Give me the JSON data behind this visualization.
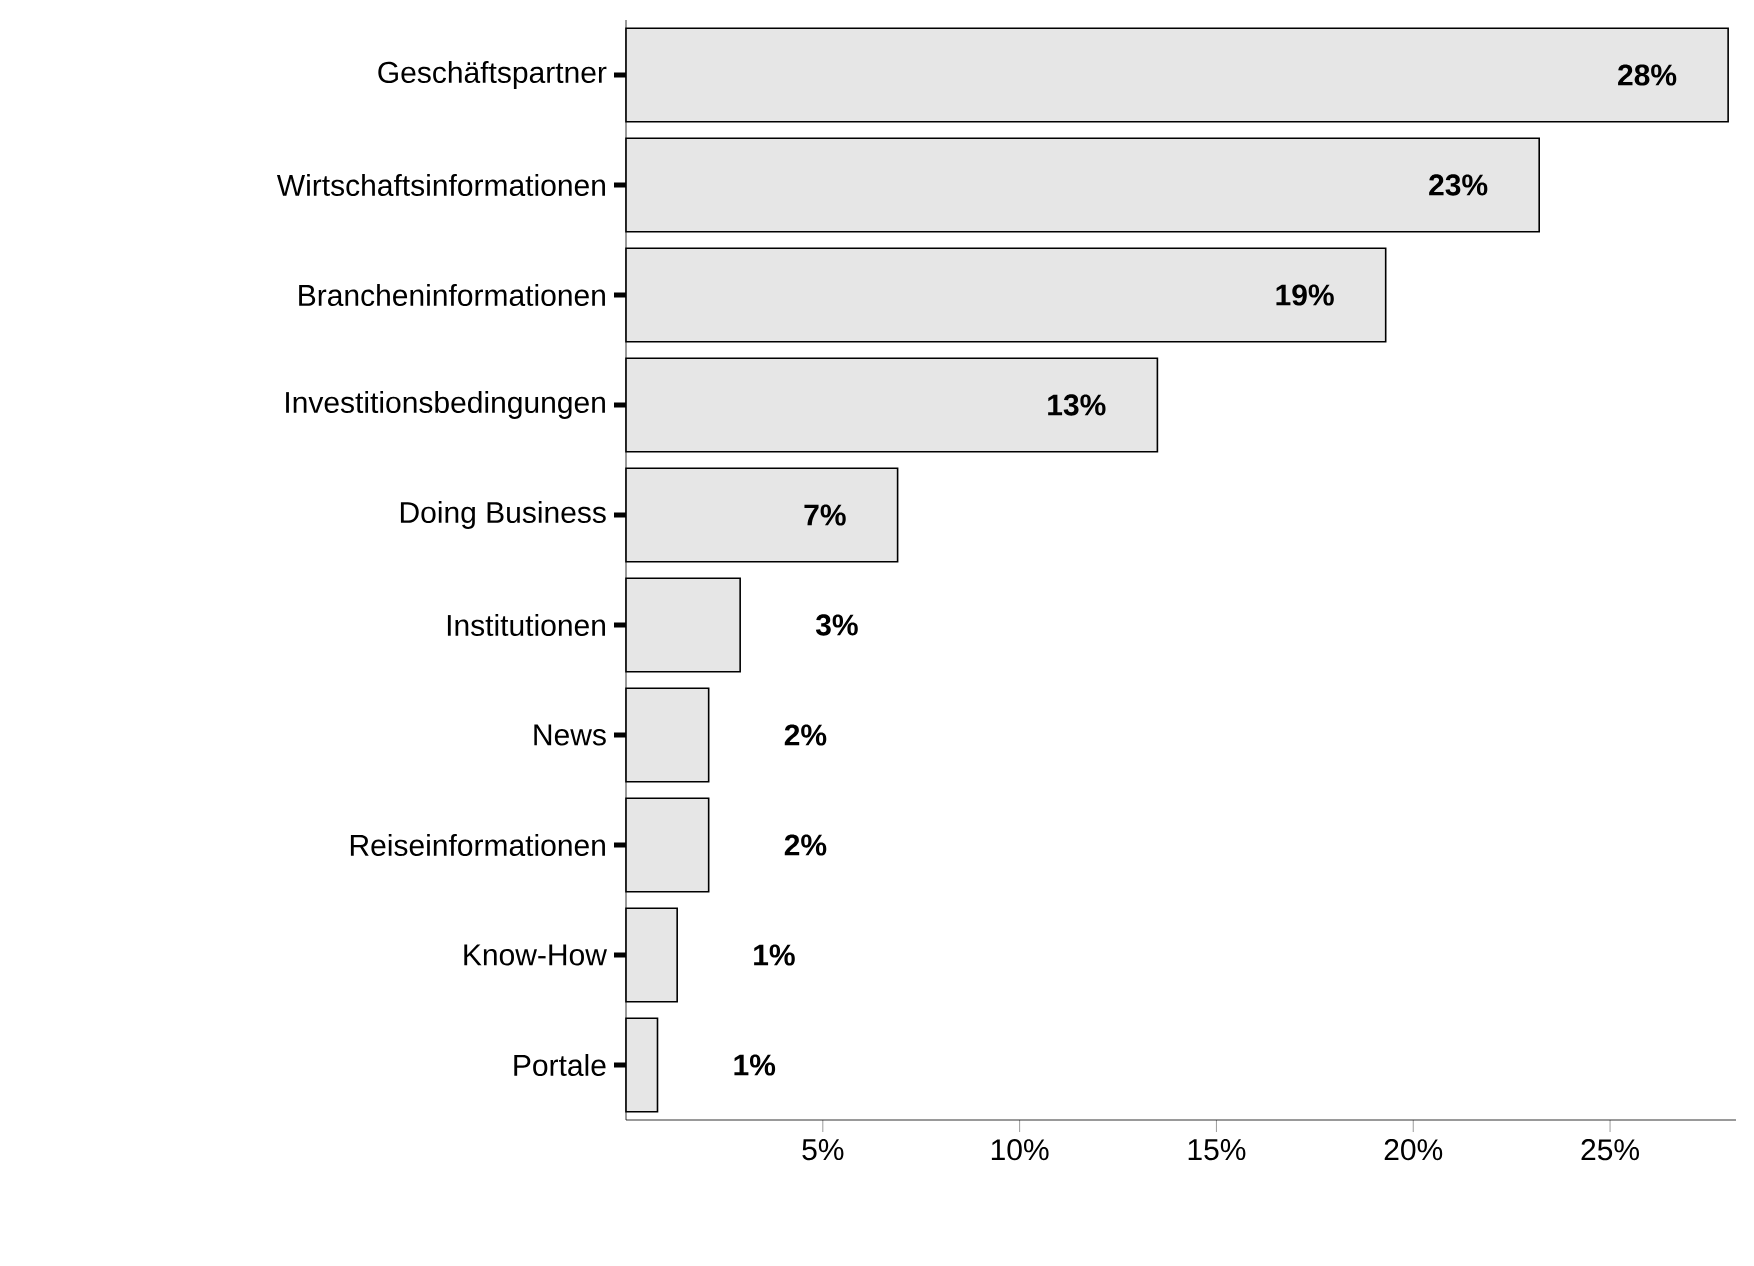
{
  "chart_data": {
    "type": "bar",
    "orientation": "horizontal",
    "categories": [
      "Geschäftspartner",
      "Wirtschaftsinformationen",
      "Brancheninformationen",
      "Investitionsbedingungen",
      "Doing Business",
      "Institutionen",
      "News",
      "Reiseinformationen",
      "Know-How",
      "Portale"
    ],
    "values": [
      28,
      23.2,
      19.3,
      13.5,
      6.9,
      2.9,
      2.1,
      2.1,
      1.3,
      0.8
    ],
    "value_labels": [
      "28%",
      "23%",
      "19%",
      "13%",
      "7%",
      "3%",
      "2%",
      "2%",
      "1%",
      "1%"
    ],
    "color": "#e6e6e6",
    "xlim": [
      0,
      28.2
    ],
    "xticks": [
      {
        "value": 5,
        "label": "5%"
      },
      {
        "value": 10,
        "label": "10%"
      },
      {
        "value": 15,
        "label": "15%"
      },
      {
        "value": 20,
        "label": "20%"
      },
      {
        "value": 25,
        "label": "25%"
      }
    ],
    "grid": false
  }
}
